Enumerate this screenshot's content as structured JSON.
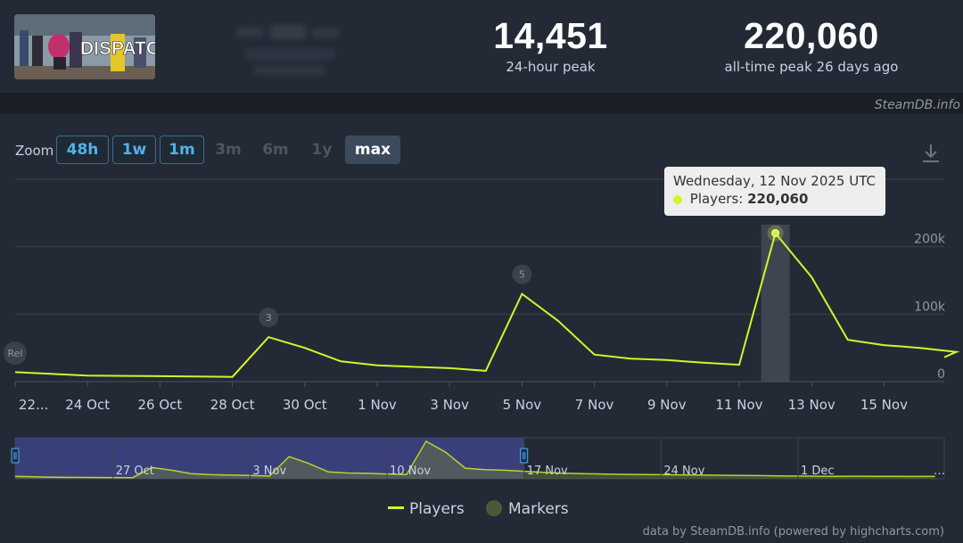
{
  "game": {
    "logo_text": "DISPATCH"
  },
  "stats": {
    "peak_24h": {
      "value": "14,451",
      "label": "24-hour peak"
    },
    "all_time_peak": {
      "value": "220,060",
      "label": "all-time peak 26 days ago"
    }
  },
  "credit_top": "SteamDB.info",
  "zoom": {
    "label": "Zoom",
    "buttons": [
      "48h",
      "1w",
      "1m",
      "3m",
      "6m",
      "1y",
      "max"
    ],
    "selected": "max"
  },
  "tooltip": {
    "date": "Wednesday, 12 Nov 2025 UTC",
    "series_label": "Players:",
    "value": "220,060"
  },
  "legend": {
    "players": "Players",
    "markers": "Markers"
  },
  "credit_bottom": "data by SteamDB.info (powered by highcharts.com)",
  "colors": {
    "players_line": "#d4f429",
    "background": "#1b2028",
    "panel": "#232a35",
    "navigator_selected": "#3d4485"
  },
  "chart_data": {
    "type": "line",
    "x_tick_labels": [
      "22...",
      "24 Oct",
      "26 Oct",
      "28 Oct",
      "30 Oct",
      "1 Nov",
      "3 Nov",
      "5 Nov",
      "7 Nov",
      "9 Nov",
      "11 Nov",
      "13 Nov",
      "15 Nov"
    ],
    "y_tick_labels": [
      "0",
      "100k",
      "200k"
    ],
    "ylim": [
      0,
      300000
    ],
    "series": [
      {
        "name": "Players",
        "points": [
          [
            "2025-10-22",
            14000
          ],
          [
            "2025-10-24",
            9000
          ],
          [
            "2025-10-26",
            8000
          ],
          [
            "2025-10-28",
            7000
          ],
          [
            "2025-10-29",
            66000
          ],
          [
            "2025-10-30",
            50000
          ],
          [
            "2025-10-31",
            30000
          ],
          [
            "2025-11-01",
            24000
          ],
          [
            "2025-11-02",
            22000
          ],
          [
            "2025-11-03",
            20000
          ],
          [
            "2025-11-04",
            16000
          ],
          [
            "2025-11-05",
            130000
          ],
          [
            "2025-11-06",
            90000
          ],
          [
            "2025-11-07",
            40000
          ],
          [
            "2025-11-08",
            34000
          ],
          [
            "2025-11-09",
            32000
          ],
          [
            "2025-11-10",
            28000
          ],
          [
            "2025-11-11",
            25000
          ],
          [
            "2025-11-12",
            220060
          ],
          [
            "2025-11-13",
            155000
          ],
          [
            "2025-11-14",
            62000
          ],
          [
            "2025-11-15",
            54000
          ],
          [
            "2025-11-16",
            50000
          ],
          [
            "2025-11-17",
            44000
          ]
        ]
      }
    ],
    "markers": [
      {
        "label": "Rel",
        "date": "2025-10-22"
      },
      {
        "label": "3",
        "date": "2025-10-29"
      },
      {
        "label": "5",
        "date": "2025-11-05"
      }
    ],
    "highlighted_point": {
      "date": "2025-11-12",
      "value": 220060
    },
    "navigator": {
      "tick_labels": [
        "27 Oct",
        "3 Nov",
        "10 Nov",
        "17 Nov",
        "24 Nov",
        "1 Dec"
      ],
      "selected_range": [
        "2025-10-22",
        "2025-11-17"
      ]
    }
  }
}
